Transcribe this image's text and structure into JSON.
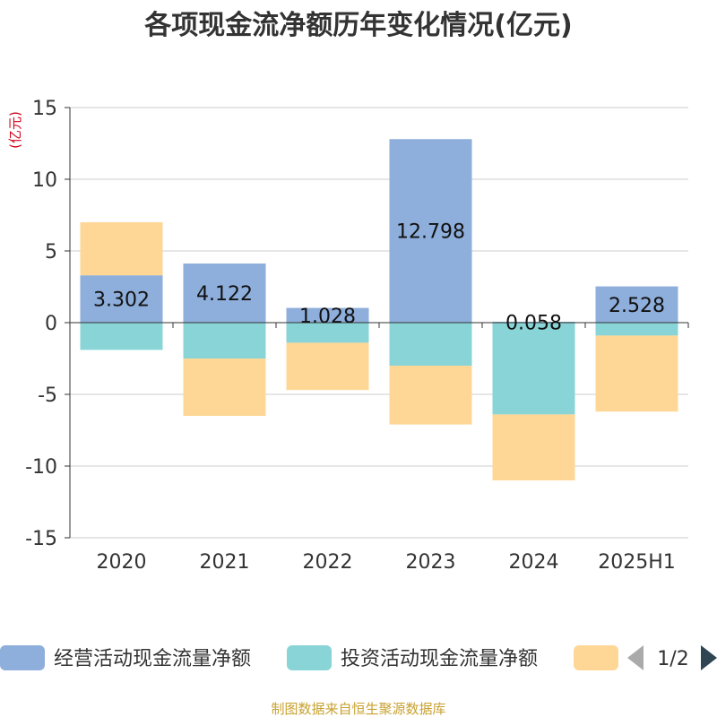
{
  "chart_data": {
    "type": "bar",
    "stacked": true,
    "title": "各项现金流净额历年变化情况(亿元)",
    "y_unit": "(亿元)",
    "categories": [
      "2020",
      "2021",
      "2022",
      "2023",
      "2024",
      "2025H1"
    ],
    "ylim": [
      -15,
      15
    ],
    "y_ticks": [
      15,
      10,
      5,
      0,
      -5,
      -10,
      -15
    ],
    "grid": true,
    "series": [
      {
        "name": "经营活动现金流量净额",
        "color": "#8eaedb",
        "values": [
          3.302,
          4.122,
          1.028,
          12.798,
          0.058,
          2.528
        ],
        "labels": [
          "3.302",
          "4.122",
          "1.028",
          "12.798",
          "0.058",
          "2.528"
        ]
      },
      {
        "name": "投资活动现金流量净额",
        "color": "#88d4d6",
        "values": [
          -1.9,
          -2.5,
          -1.4,
          -3.0,
          -6.4,
          -0.9
        ]
      },
      {
        "name": "",
        "color": "#fed796",
        "values": [
          3.7,
          -4.0,
          -3.3,
          -4.1,
          -4.6,
          -5.3
        ]
      }
    ],
    "legend": {
      "placement": "bottom",
      "page": "1/2"
    }
  },
  "footer": "制图数据来自恒生聚源数据库"
}
